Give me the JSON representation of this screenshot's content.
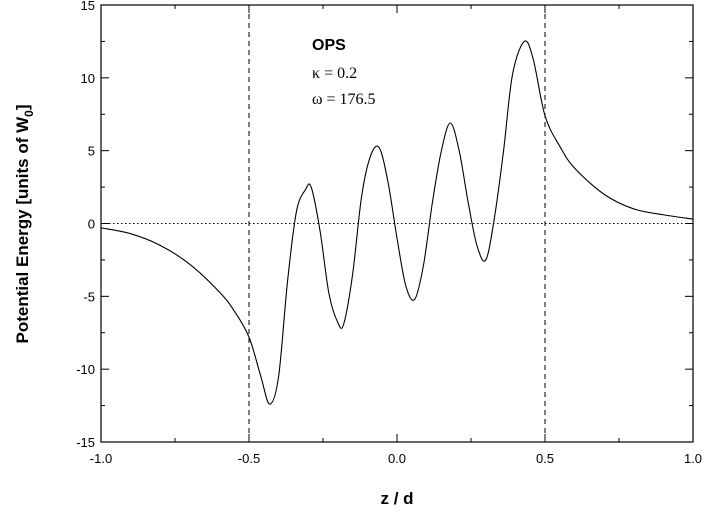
{
  "chart_data": {
    "type": "line",
    "title": "",
    "xlabel": "z / d",
    "ylabel_main": "Potential Energy [units of W",
    "ylabel_sub": "0",
    "ylabel_end": "]",
    "xlim": [
      -1.0,
      1.0
    ],
    "ylim": [
      -15,
      15
    ],
    "x_ticks": [
      -1.0,
      -0.5,
      0.0,
      0.5,
      1.0
    ],
    "x_tick_labels": [
      "-1.0",
      "-0.5",
      "0.0",
      "0.5",
      "1.0"
    ],
    "y_ticks": [
      -15,
      -10,
      -5,
      0,
      5,
      10,
      15
    ],
    "y_tick_labels": [
      "-15",
      "-10",
      "-5",
      "0",
      "5",
      "10",
      "15"
    ],
    "vertical_dashed_lines": [
      -0.5,
      0.5
    ],
    "horizontal_dotted_line": 0,
    "grid": false,
    "annotations": {
      "name": "OPS",
      "kappa": "κ = 0.2",
      "omega": "ω = 176.5"
    },
    "series": [
      {
        "x": [
          -1.0,
          -0.9,
          -0.8,
          -0.7,
          -0.6,
          -0.55,
          -0.5,
          -0.46,
          -0.43,
          -0.4,
          -0.37,
          -0.34,
          -0.31,
          -0.29,
          -0.26,
          -0.23,
          -0.2,
          -0.18,
          -0.15,
          -0.12,
          -0.09,
          -0.06,
          -0.03,
          0.0,
          0.03,
          0.06,
          0.09,
          0.12,
          0.15,
          0.18,
          0.21,
          0.24,
          0.27,
          0.3,
          0.33,
          0.36,
          0.39,
          0.43,
          0.46,
          0.5,
          0.55,
          0.6,
          0.7,
          0.8,
          0.9,
          1.0
        ],
        "y": [
          -0.3,
          -0.7,
          -1.5,
          -2.8,
          -4.7,
          -6.0,
          -7.8,
          -10.5,
          -12.4,
          -10.5,
          -4.0,
          0.8,
          2.3,
          2.5,
          -0.5,
          -4.8,
          -6.8,
          -6.9,
          -3.5,
          1.8,
          4.6,
          5.2,
          2.8,
          -1.0,
          -4.3,
          -5.2,
          -2.8,
          1.5,
          5.0,
          6.9,
          5.0,
          1.5,
          -1.5,
          -2.5,
          0.5,
          5.0,
          10.2,
          12.5,
          11.3,
          7.4,
          5.3,
          3.8,
          2.0,
          1.0,
          0.6,
          0.3
        ]
      }
    ]
  }
}
